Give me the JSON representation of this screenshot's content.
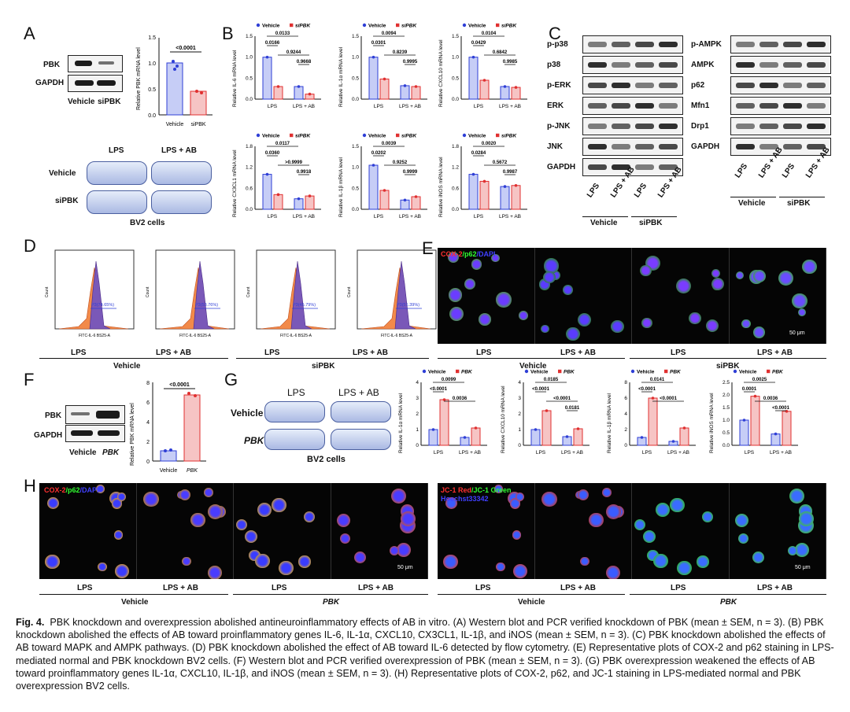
{
  "panels": {
    "A": "A",
    "B": "B",
    "C": "C",
    "D": "D",
    "E": "E",
    "F": "F",
    "G": "G",
    "H": "H"
  },
  "panelA": {
    "rows": [
      "PBK",
      "GAPDH"
    ],
    "lanes": [
      "Vehicle",
      "siPBK"
    ],
    "ylabel": "Relative PBK mRNA level",
    "p": "<0.0001",
    "yticks": [
      "0.0",
      "0.5",
      "1.0",
      "1.5"
    ],
    "cats": [
      "Vehicle",
      "siPBK"
    ],
    "values": [
      1.0,
      0.45
    ],
    "dish_top": [
      "LPS",
      "LPS + AB"
    ],
    "dish_left": [
      "Vehicle",
      "siPBK"
    ],
    "cells": "BV2 cells"
  },
  "panelB": {
    "legend": [
      "Vehicle",
      "siPBK"
    ],
    "xcats": [
      "LPS",
      "LPS + AB"
    ],
    "charts": [
      {
        "ylabel": "Relative IL-6 mRNA level",
        "p": [
          "0.0133",
          "0.0166",
          "0.9244",
          "0.9668"
        ],
        "yticks": [
          "0.0",
          "0.5",
          "1.0",
          "1.5"
        ],
        "values": [
          1.0,
          0.3,
          0.3,
          0.12
        ]
      },
      {
        "ylabel": "Relative IL-1α mRNA level",
        "p": [
          "0.0094",
          "0.0301",
          "0.8239",
          "0.9995"
        ],
        "yticks": [
          "0.0",
          "0.5",
          "1.0",
          "1.5"
        ],
        "values": [
          1.0,
          0.48,
          0.32,
          0.3
        ]
      },
      {
        "ylabel": "Relative CXCL10 mRNA level",
        "p": [
          "0.0104",
          "0.0429",
          "0.6842",
          "0.9985"
        ],
        "yticks": [
          "0.0",
          "0.5",
          "1.0",
          "1.5"
        ],
        "values": [
          1.0,
          0.45,
          0.3,
          0.28
        ]
      },
      {
        "ylabel": "Relative CX3CL1 mRNA level",
        "p": [
          "0.0117",
          "0.0360",
          ">0.9999",
          "0.9918"
        ],
        "yticks": [
          "0.0",
          "0.6",
          "1.2",
          "1.8"
        ],
        "values": [
          1.0,
          0.42,
          0.3,
          0.38
        ]
      },
      {
        "ylabel": "Relative IL-1β mRNA level",
        "p": [
          "0.0039",
          "0.0202",
          "0.9252",
          "0.9999"
        ],
        "yticks": [
          "0.0",
          "0.5",
          "1.0",
          "1.5"
        ],
        "values": [
          1.05,
          0.45,
          0.22,
          0.3
        ]
      },
      {
        "ylabel": "Relative iNOS mRNA level",
        "p": [
          "0.0020",
          "0.0284",
          "0.5672",
          "0.9987"
        ],
        "yticks": [
          "0.0",
          "0.6",
          "1.2",
          "1.8"
        ],
        "values": [
          1.0,
          0.8,
          0.65,
          0.68
        ]
      }
    ]
  },
  "panelC": {
    "left_rows": [
      "p-p38",
      "p38",
      "p-ERK",
      "ERK",
      "p-JNK",
      "JNK",
      "GAPDH"
    ],
    "right_rows": [
      "p-AMPK",
      "AMPK",
      "p62",
      "Mfn1",
      "Drp1",
      "GAPDH"
    ],
    "lanes": [
      "LPS",
      "LPS + AB",
      "LPS",
      "LPS + AB"
    ],
    "groups": [
      "Vehicle",
      "siPBK"
    ]
  },
  "panelD": {
    "gates": [
      "P3(74.65%)",
      "P3(53.76%)",
      "P3(45.79%)",
      "P3(51.39%)"
    ],
    "axis": "FITC-IL-6 BS25-A",
    "count": "Count",
    "lanes": [
      "LPS",
      "LPS + AB",
      "LPS",
      "LPS + AB"
    ],
    "groups": [
      "Vehicle",
      "siPBK"
    ]
  },
  "panelE": {
    "stain_red": "COX-2",
    "stain_green": "/p62",
    "stain_blue": "/DAPI",
    "scale": "50 μm",
    "lanes": [
      "LPS",
      "LPS + AB",
      "LPS",
      "LPS + AB"
    ],
    "groups": [
      "Vehicle",
      "siPBK"
    ]
  },
  "panelF": {
    "rows": [
      "PBK",
      "GAPDH"
    ],
    "lanes": [
      "Vehicle",
      "PBK"
    ],
    "ylabel": "Relative PBK mRNA level",
    "p": "<0.0001",
    "yticks": [
      "0",
      "2",
      "4",
      "6",
      "8"
    ],
    "cats": [
      "Vehicle",
      "PBK"
    ],
    "values": [
      1.0,
      6.7
    ]
  },
  "panelG": {
    "dish_top": [
      "LPS",
      "LPS + AB"
    ],
    "dish_left": [
      "Vehicle",
      "PBK"
    ],
    "cells": "BV2 cells",
    "legend": [
      "Vehicle",
      "PBK"
    ],
    "xcats": [
      "LPS",
      "LPS + AB"
    ],
    "charts": [
      {
        "ylabel": "Relative IL-1α mRNA level",
        "p": [
          "0.0099",
          "<0.0001",
          "0.0036"
        ],
        "yticks": [
          "0",
          "1",
          "2",
          "3",
          "4"
        ],
        "values": [
          1.0,
          2.9,
          0.5,
          1.1
        ]
      },
      {
        "ylabel": "Relative CXCL10 mRNA level",
        "p": [
          "0.0185",
          "<0.0001",
          "<0.0001",
          "0.0181"
        ],
        "yticks": [
          "0",
          "1",
          "2",
          "3",
          "4"
        ],
        "values": [
          1.0,
          2.2,
          0.55,
          1.05
        ]
      },
      {
        "ylabel": "Relative IL-1β mRNA level",
        "p": [
          "0.0141",
          "<0.0001",
          "<0.0001"
        ],
        "yticks": [
          "0",
          "2",
          "4",
          "6",
          "8"
        ],
        "values": [
          1.0,
          6.0,
          0.5,
          2.2
        ]
      },
      {
        "ylabel": "Relative iNOS mRNA level",
        "p": [
          "0.0025",
          "0.0001",
          "0.0036",
          "<0.0001"
        ],
        "yticks": [
          "0.0",
          "0.5",
          "1.0",
          "1.5",
          "2.0",
          "2.5"
        ],
        "values": [
          1.0,
          1.95,
          0.45,
          1.35
        ]
      }
    ]
  },
  "panelH": {
    "stain_red": "COX-2",
    "stain_green": "/p62",
    "stain_blue": "/DAPI",
    "jc_red": "JC-1 Red",
    "jc_green": "/JC-1 Green",
    "jc_blue": "Hoechst33342",
    "scale": "50 μm",
    "lanes": [
      "LPS",
      "LPS + AB",
      "LPS",
      "LPS + AB"
    ],
    "groups": [
      "Vehicle",
      "PBK",
      "Vehicle",
      "PBK"
    ]
  },
  "caption": {
    "fig": "Fig. 4.",
    "text": "PBK knockdown and overexpression abolished antineuroinflammatory effects of AB in vitro. (A) Western blot and PCR verified knockdown of PBK (mean ± SEM, n = 3). (B) PBK knockdown abolished the effects of AB toward proinflammatory genes IL-6, IL-1α, CXCL10, CX3CL1, IL-1β, and iNOS (mean ± SEM, n = 3). (C) PBK knockdown abolished the effects of AB toward MAPK and AMPK pathways. (D) PBK knockdown abolished the effect of AB toward IL-6 detected by flow cytometry. (E) Representative plots of COX-2 and p62 staining in LPS-mediated normal and PBK knockdown BV2 cells. (F) Western blot and PCR verified overexpression of PBK (mean ± SEM, n = 3). (G) PBK overexpression weakened the effects of AB toward proinflammatory genes IL-1α, CXCL10, IL-1β, and iNOS (mean ± SEM, n = 3). (H) Representative plots of COX-2, p62, and JC-1 staining in LPS-mediated normal and PBK overexpression BV2 cells."
  },
  "colors": {
    "vehicle": "#2f3fd6",
    "sipbk": "#e03030",
    "vehicle_fill": "#c6cdf6",
    "sipbk_fill": "#f6c4c4"
  }
}
